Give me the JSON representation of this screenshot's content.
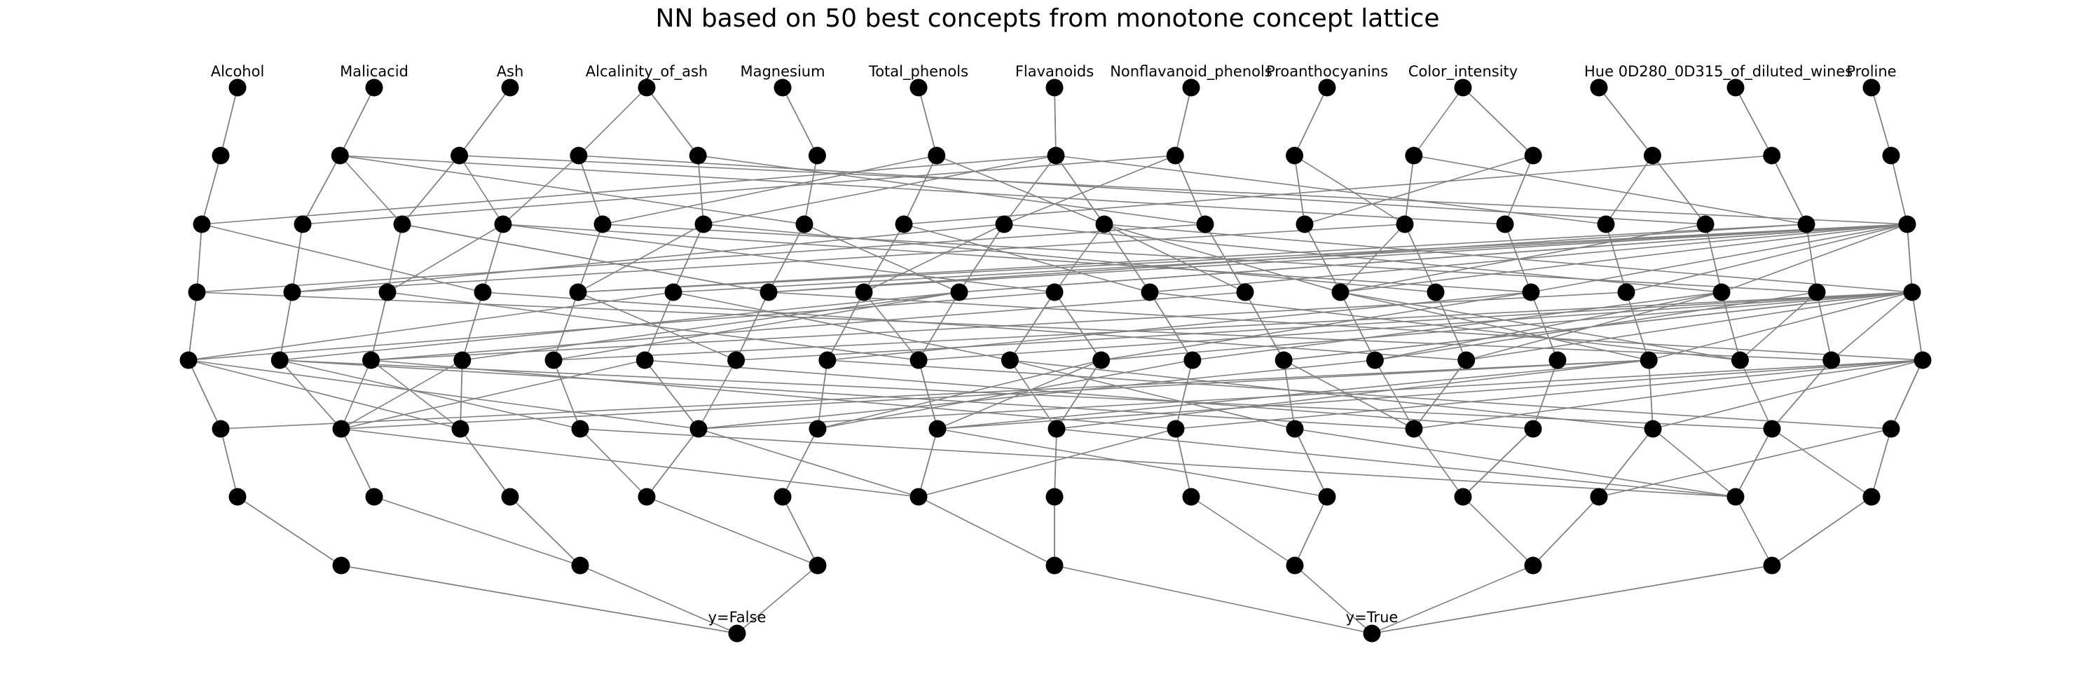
{
  "figure": {
    "title": "NN based on 50 best concepts from monotone concept lattice",
    "edge_color": "#808080",
    "node_color": "#000000",
    "input_labels": [
      "Alcohol",
      "Malicacid",
      "Ash",
      "Alcalinity_of_ash",
      "Magnesium",
      "Total_phenols",
      "Flavanoids",
      "Nonflavanoid_phenols",
      "Proanthocyanins",
      "Color_intensity",
      "Hue",
      "0D280_0D315_of_diluted_wines",
      "Proline"
    ],
    "output_labels": [
      "y=False",
      "y=True"
    ],
    "layer_sizes": [
      13,
      14,
      18,
      19,
      20,
      15,
      13,
      7,
      2
    ]
  }
}
